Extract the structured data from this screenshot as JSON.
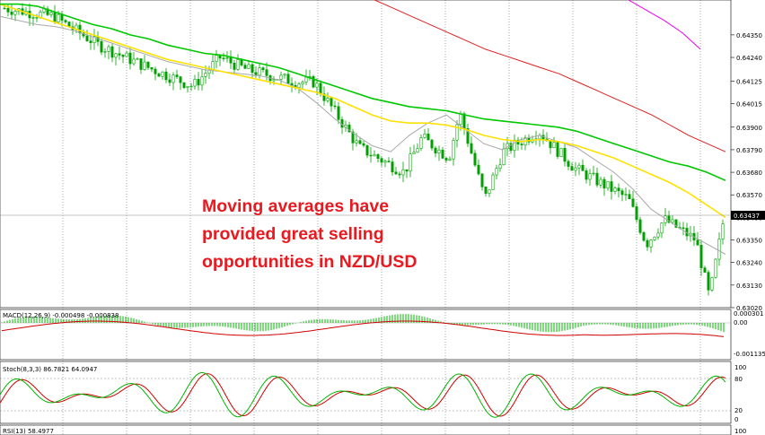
{
  "chart_data": {
    "type": "candlestick",
    "instrument": "NZD/USD",
    "main_panel": {
      "ylim": [
        0.6302,
        0.6452
      ],
      "y_ticks": [
        "0.64350",
        "0.64240",
        "0.64125",
        "0.64015",
        "0.63900",
        "0.63790",
        "0.63680",
        "0.63570",
        "0.63460",
        "0.63350",
        "0.63240",
        "0.63130",
        "0.63020"
      ],
      "current_price": "0.63437",
      "annotation": [
        "Moving averages have",
        "provided great selling",
        "opportunities in NZD/USD"
      ],
      "moving_averages": [
        {
          "color": "#a9a9a9",
          "values": [
            0.6444,
            0.6442,
            0.644,
            0.6439,
            0.6437,
            0.6434,
            0.6431,
            0.6428,
            0.6425,
            0.6422,
            0.642,
            0.6418,
            0.6417,
            0.6416,
            0.6415,
            0.6413,
            0.6409,
            0.6402,
            0.6394,
            0.6387,
            0.6381,
            0.6378,
            0.6386,
            0.6392,
            0.6396,
            0.6389,
            0.6382,
            0.6379,
            0.6384,
            0.6386,
            0.6383,
            0.638,
            0.6374,
            0.6368,
            0.636,
            0.635,
            0.6344,
            0.6338,
            0.6333,
            0.6328
          ]
        },
        {
          "color": "#ffe100",
          "values": [
            0.645,
            0.6447,
            0.6444,
            0.6441,
            0.6438,
            0.6435,
            0.6432,
            0.6429,
            0.6426,
            0.6423,
            0.6421,
            0.6419,
            0.6417,
            0.6415,
            0.6413,
            0.6411,
            0.6409,
            0.6407,
            0.6404,
            0.64,
            0.6396,
            0.6393,
            0.6392,
            0.6392,
            0.6391,
            0.6389,
            0.6386,
            0.6384,
            0.6383,
            0.6384,
            0.6383,
            0.6381,
            0.6378,
            0.6375,
            0.6371,
            0.6367,
            0.6363,
            0.6358,
            0.6352,
            0.6346
          ]
        },
        {
          "color": "#00c800",
          "values": [
            0.645,
            0.645,
            0.6449,
            0.6446,
            0.6443,
            0.644,
            0.6438,
            0.6435,
            0.6433,
            0.643,
            0.6428,
            0.6426,
            0.6425,
            0.6423,
            0.6421,
            0.6419,
            0.6416,
            0.6413,
            0.641,
            0.6407,
            0.6404,
            0.6402,
            0.64,
            0.6399,
            0.6398,
            0.6396,
            0.6394,
            0.6393,
            0.6392,
            0.6391,
            0.639,
            0.6388,
            0.6385,
            0.6382,
            0.6379,
            0.6376,
            0.6373,
            0.6371,
            0.6368,
            0.6364
          ]
        },
        {
          "color": "#e02020",
          "values": [
            0.646,
            0.6459,
            0.6457,
            0.6455,
            0.6452,
            0.6448,
            0.6444,
            0.644,
            0.6436,
            0.6432,
            0.6428,
            0.6425,
            0.6422,
            0.6419,
            0.6416,
            0.6412,
            0.6408,
            0.6404,
            0.64,
            0.6396,
            0.6391,
            0.6386,
            0.6382,
            0.6378
          ]
        },
        {
          "color": "#ee00ee",
          "values": [
            0.6452,
            0.6447,
            0.6442,
            0.6436,
            0.6428
          ]
        }
      ]
    },
    "macd_panel": {
      "label": "MACD(12,26,9) -0.000498 -0.000838",
      "y_ticks": [
        "0.000301",
        "0.00",
        "-0.001135"
      ]
    },
    "stoch_panel": {
      "label": "Stoch(8,3,3) 86.7821 64.0947",
      "y_ticks": [
        "100",
        "80",
        "20",
        "0"
      ]
    },
    "rsi_panel": {
      "label": "RSI(13) 58.4977",
      "y_ticks": [
        "100"
      ]
    }
  }
}
